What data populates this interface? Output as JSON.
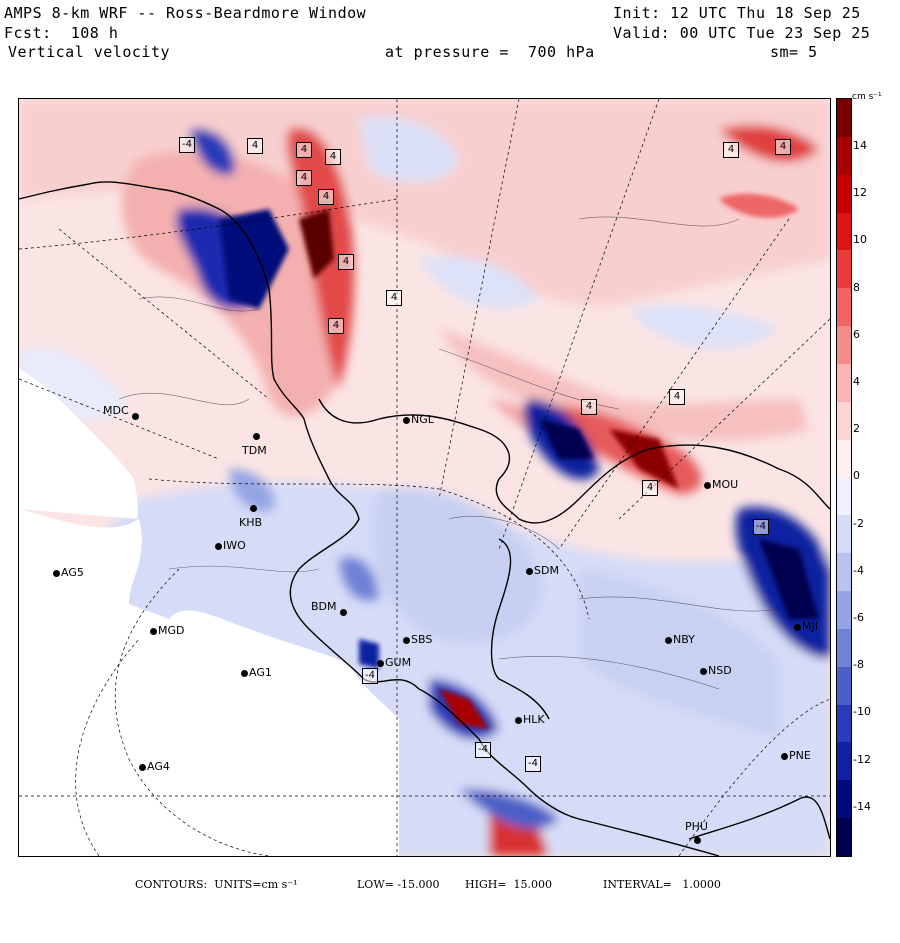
{
  "header": {
    "title": "AMPS 8-km WRF -- Ross-Beardmore Window",
    "forecast": "Fcst:  108 h",
    "field": "Vertical velocity",
    "init": "Init: 12 UTC Thu 18 Sep 25",
    "valid": "Valid: 00 UTC Tue 23 Sep 25",
    "pressure": "at pressure =  700 hPa",
    "smooth": "sm= 5"
  },
  "colorbar": {
    "unit": "cm s⁻¹",
    "ticks": [
      "14",
      "12",
      "10",
      "8",
      "6",
      "4",
      "2",
      "0",
      "-2",
      "-4",
      "-6",
      "-8",
      "-10",
      "-12",
      "-14"
    ],
    "colors": [
      "#7a0000",
      "#a80000",
      "#c40000",
      "#dc1414",
      "#e83c3c",
      "#f06464",
      "#f58c8c",
      "#f9b4b4",
      "#fcd6d6",
      "#fff0f0",
      "#f0f0ff",
      "#d6dcf7",
      "#b8c4ef",
      "#95a5e4",
      "#7082d6",
      "#4b5ec8",
      "#2a3ab8",
      "#1020a0",
      "#000a7a",
      "#000050"
    ]
  },
  "stations": [
    {
      "id": "MDC"
    },
    {
      "id": "TDM"
    },
    {
      "id": "NGL"
    },
    {
      "id": "MOU"
    },
    {
      "id": "KHB"
    },
    {
      "id": "IWO"
    },
    {
      "id": "AG5"
    },
    {
      "id": "SDM"
    },
    {
      "id": "BDM"
    },
    {
      "id": "MGD"
    },
    {
      "id": "SBS"
    },
    {
      "id": "GUM"
    },
    {
      "id": "NBY"
    },
    {
      "id": "AG1"
    },
    {
      "id": "NSD"
    },
    {
      "id": "MJI"
    },
    {
      "id": "HLK"
    },
    {
      "id": "AG4"
    },
    {
      "id": "PNE"
    },
    {
      "id": "PHU"
    }
  ],
  "contour_labels": [
    "-4",
    "4",
    "4",
    "4",
    "4",
    "4",
    "4",
    "4",
    "4",
    "4",
    "4",
    "4",
    "4",
    "4",
    "-4",
    "-4",
    "-4",
    "-4"
  ],
  "footer": {
    "contours": "CONTOURS:  UNITS=cm s⁻¹",
    "low": "LOW= -15.000",
    "high": "HIGH=  15.000",
    "interval": "INTERVAL=   1.0000"
  },
  "colors": {
    "land_outline": "#000000",
    "no_data": "#ffffff"
  }
}
